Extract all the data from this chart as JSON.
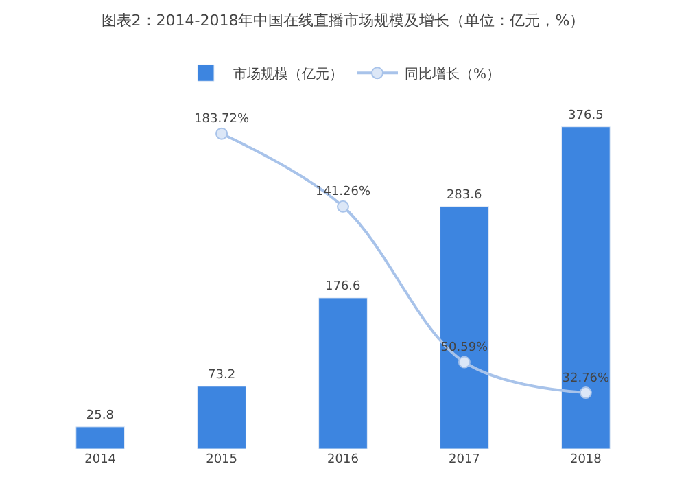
{
  "chart_data": {
    "type": "bar",
    "title": "图表2：2014-2018年中国在线直播市场规模及增长（单位：亿元，%）",
    "categories": [
      "2014",
      "2015",
      "2016",
      "2017",
      "2018"
    ],
    "series": [
      {
        "name": "市场规模（亿元）",
        "color": "#3d85e0",
        "values": [
          25.8,
          73.2,
          176.6,
          283.6,
          376.5
        ],
        "value_labels": [
          "25.8",
          "73.2",
          "176.6",
          "283.6",
          "376.5"
        ]
      },
      {
        "name": "同比增长（%）",
        "type": "line",
        "axis": "y2",
        "color": "#a8c3ea",
        "marker": "circle",
        "values": [
          null,
          183.72,
          141.26,
          50.59,
          32.76
        ],
        "value_labels": [
          null,
          "183.72%",
          "141.26%",
          "50.59%",
          "32.76%"
        ]
      }
    ],
    "tick_labels": "x",
    "legend": "top"
  }
}
